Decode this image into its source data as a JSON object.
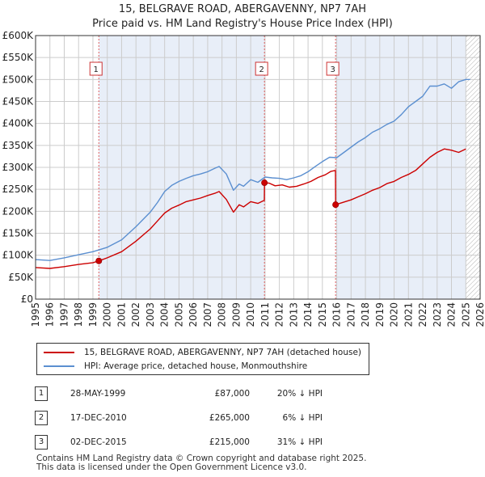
{
  "header": {
    "title_line1": "15, BELGRAVE ROAD, ABERGAVENNY, NP7 7AH",
    "title_line2": "Price paid vs. HM Land Registry's House Price Index (HPI)"
  },
  "colors": {
    "property": "#cc0000",
    "hpi": "#5b8fd0",
    "shade": "#e8eef8",
    "grid": "#cccccc",
    "vline": "#e06060"
  },
  "chart_data": {
    "type": "line",
    "xlim": [
      1995,
      2026
    ],
    "ylim": [
      0,
      600000
    ],
    "x_ticks": [
      1995,
      1996,
      1997,
      1998,
      1999,
      2000,
      2001,
      2002,
      2003,
      2004,
      2005,
      2006,
      2007,
      2008,
      2009,
      2010,
      2011,
      2012,
      2013,
      2014,
      2015,
      2016,
      2017,
      2018,
      2019,
      2020,
      2021,
      2022,
      2023,
      2024,
      2025,
      2026
    ],
    "x_tick_labels": [
      "1995",
      "1996",
      "1997",
      "1998",
      "1999",
      "2000",
      "2001",
      "2002",
      "2003",
      "2004",
      "2005",
      "2006",
      "2007",
      "2008",
      "2009",
      "2010",
      "2011",
      "2012",
      "2013",
      "2014",
      "2015",
      "2016",
      "2017",
      "2018",
      "2019",
      "2020",
      "2021",
      "2022",
      "2023",
      "2024",
      "2025",
      "2026"
    ],
    "y_ticks": [
      0,
      50000,
      100000,
      150000,
      200000,
      250000,
      300000,
      350000,
      400000,
      450000,
      500000,
      550000,
      600000
    ],
    "y_tick_labels": [
      "£0",
      "£50K",
      "£100K",
      "£150K",
      "£200K",
      "£250K",
      "£300K",
      "£350K",
      "£400K",
      "£450K",
      "£500K",
      "£550K",
      "£600K"
    ],
    "shaded_periods": [
      [
        1999.41,
        2010.96
      ],
      [
        2015.92,
        2025.0
      ]
    ],
    "hatched_from": 2025.0,
    "series": [
      {
        "name": "15, BELGRAVE ROAD, ABERGAVENNY, NP7 7AH (detached house)",
        "x": [
          1995.0,
          1996.0,
          1997.0,
          1998.0,
          1999.0,
          1999.41,
          2000.0,
          2001.0,
          2002.0,
          2003.0,
          2003.5,
          2004.0,
          2004.5,
          2005.0,
          2005.5,
          2006.0,
          2006.5,
          2007.0,
          2007.5,
          2007.8,
          2008.3,
          2008.8,
          2009.2,
          2009.5,
          2010.0,
          2010.5,
          2010.95,
          2010.96,
          2011.3,
          2011.7,
          2012.2,
          2012.7,
          2013.2,
          2013.7,
          2014.2,
          2014.7,
          2015.2,
          2015.6,
          2015.91,
          2015.92,
          2016.5,
          2017.0,
          2017.5,
          2018.0,
          2018.5,
          2019.0,
          2019.5,
          2020.0,
          2020.5,
          2021.0,
          2021.5,
          2022.0,
          2022.5,
          2023.0,
          2023.5,
          2024.0,
          2024.5,
          2025.0
        ],
        "values": [
          72000,
          70000,
          74000,
          79000,
          83000,
          87000,
          94000,
          108000,
          132000,
          160000,
          178000,
          196000,
          207000,
          214000,
          222000,
          226000,
          230000,
          236000,
          241000,
          245000,
          227000,
          198000,
          215000,
          210000,
          222000,
          218000,
          225000,
          265000,
          264000,
          258000,
          260000,
          255000,
          257000,
          262000,
          268000,
          277000,
          283000,
          291000,
          293000,
          215000,
          221000,
          226000,
          233000,
          240000,
          248000,
          254000,
          263000,
          268000,
          277000,
          284000,
          293000,
          308000,
          323000,
          334000,
          342000,
          339000,
          334000,
          342000
        ]
      },
      {
        "name": "HPI: Average price, detached house, Monmouthshire",
        "x": [
          1995.0,
          1996.0,
          1997.0,
          1998.0,
          1999.0,
          2000.0,
          2001.0,
          2002.0,
          2003.0,
          2003.5,
          2004.0,
          2004.5,
          2005.0,
          2005.5,
          2006.0,
          2006.5,
          2007.0,
          2007.5,
          2007.8,
          2008.3,
          2008.8,
          2009.2,
          2009.5,
          2010.0,
          2010.5,
          2011.0,
          2011.5,
          2012.0,
          2012.5,
          2013.0,
          2013.5,
          2014.0,
          2014.5,
          2015.0,
          2015.5,
          2016.0,
          2016.5,
          2017.0,
          2017.5,
          2018.0,
          2018.5,
          2019.0,
          2019.5,
          2020.0,
          2020.5,
          2021.0,
          2021.5,
          2022.0,
          2022.5,
          2023.0,
          2023.5,
          2024.0,
          2024.5,
          2025.0,
          2025.3
        ],
        "values": [
          90000,
          88000,
          94000,
          101000,
          108000,
          118000,
          135000,
          165000,
          198000,
          220000,
          245000,
          259000,
          268000,
          275000,
          281000,
          285000,
          290000,
          298000,
          302000,
          285000,
          248000,
          262000,
          257000,
          272000,
          266000,
          278000,
          276000,
          275000,
          272000,
          276000,
          281000,
          290000,
          302000,
          313000,
          323000,
          322000,
          334000,
          346000,
          358000,
          368000,
          380000,
          388000,
          398000,
          405000,
          420000,
          438000,
          450000,
          462000,
          485000,
          485000,
          490000,
          480000,
          495000,
          500000,
          500000
        ]
      }
    ],
    "sales": [
      {
        "label": "1",
        "x": 1999.41,
        "value": 87000
      },
      {
        "label": "2",
        "x": 2010.96,
        "value": 265000
      },
      {
        "label": "3",
        "x": 2015.92,
        "value": 215000
      }
    ]
  },
  "legend": {
    "property_label": "15, BELGRAVE ROAD, ABERGAVENNY, NP7 7AH (detached house)",
    "hpi_label": "HPI: Average price, detached house, Monmouthshire"
  },
  "transactions": [
    {
      "num": "1",
      "date": "28-MAY-1999",
      "price": "£87,000",
      "hpi": "20% ↓ HPI"
    },
    {
      "num": "2",
      "date": "17-DEC-2010",
      "price": "£265,000",
      "hpi": "6% ↓ HPI"
    },
    {
      "num": "3",
      "date": "02-DEC-2015",
      "price": "£215,000",
      "hpi": "31% ↓ HPI"
    }
  ],
  "footer": {
    "line1": "Contains HM Land Registry data © Crown copyright and database right 2025.",
    "line2": "This data is licensed under the Open Government Licence v3.0."
  }
}
